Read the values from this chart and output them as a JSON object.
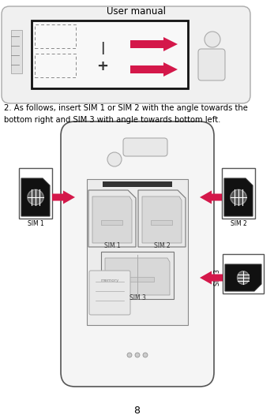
{
  "title": "User manual",
  "page_number": "8",
  "body_text_line1": "2. As follows, insert SIM 1 or SIM 2 with the angle towards the",
  "body_text_line2": "bottom right and SIM 3 with angle towards bottom left.",
  "bg_color": "#ffffff",
  "text_color": "#000000",
  "arrow_color": "#d4184a",
  "phone_bg": "#f8f8f8",
  "slot_bg": "#eeeeee",
  "sim_icon_dark": "#111111",
  "sim_icon_chip": "#888888"
}
